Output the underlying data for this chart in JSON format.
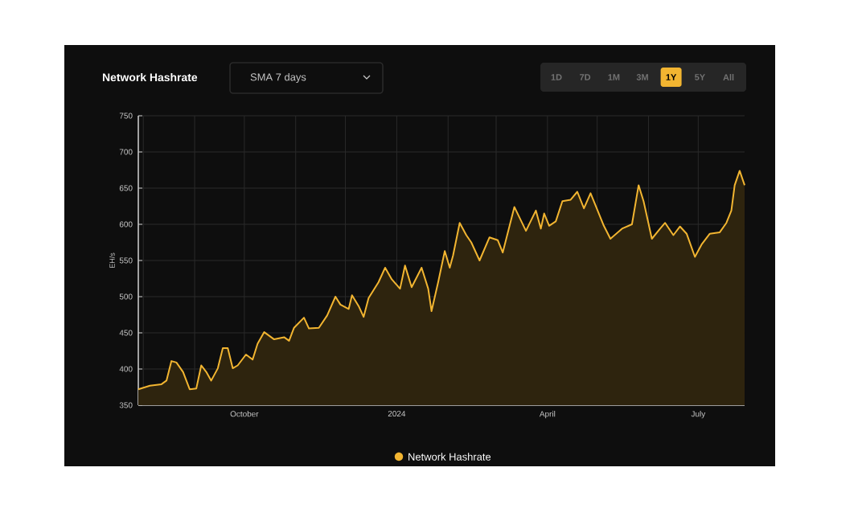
{
  "chart_data": {
    "type": "area",
    "title": "Network Hashrate",
    "subtitle": "SMA 7 days",
    "annotations": [
      "1D",
      "7D",
      "1M",
      "3M",
      "1Y",
      "5Y",
      "All"
    ],
    "ylabel": "EH/s",
    "x": [
      "2023-07-29",
      "2023-08-05",
      "2023-08-12",
      "2023-08-15",
      "2023-08-18",
      "2023-08-21",
      "2023-08-25",
      "2023-08-29",
      "2023-09-02",
      "2023-09-05",
      "2023-09-08",
      "2023-09-11",
      "2023-09-15",
      "2023-09-18",
      "2023-09-21",
      "2023-09-24",
      "2023-09-27",
      "2023-10-02",
      "2023-10-06",
      "2023-10-09",
      "2023-10-13",
      "2023-10-19",
      "2023-10-25",
      "2023-10-28",
      "2023-10-31",
      "2023-11-06",
      "2023-11-09",
      "2023-11-15",
      "2023-11-20",
      "2023-11-25",
      "2023-11-28",
      "2023-12-03",
      "2023-12-05",
      "2023-12-09",
      "2023-12-12",
      "2023-12-15",
      "2023-12-21",
      "2023-12-25",
      "2023-12-29",
      "2024-01-03",
      "2024-01-06",
      "2024-01-10",
      "2024-01-16",
      "2024-01-20",
      "2024-01-22",
      "2024-01-26",
      "2024-01-30",
      "2024-02-02",
      "2024-02-04",
      "2024-02-08",
      "2024-02-12",
      "2024-02-15",
      "2024-02-20",
      "2024-02-26",
      "2024-03-02",
      "2024-03-05",
      "2024-03-12",
      "2024-03-19",
      "2024-03-25",
      "2024-03-28",
      "2024-03-30",
      "2024-04-02",
      "2024-04-06",
      "2024-04-10",
      "2024-04-15",
      "2024-04-19",
      "2024-04-23",
      "2024-04-27",
      "2024-05-05",
      "2024-05-09",
      "2024-05-16",
      "2024-05-22",
      "2024-05-26",
      "2024-05-29",
      "2024-06-03",
      "2024-06-08",
      "2024-06-11",
      "2024-06-16",
      "2024-06-20",
      "2024-06-24",
      "2024-06-29",
      "2024-07-03",
      "2024-07-08",
      "2024-07-14",
      "2024-07-18",
      "2024-07-21",
      "2024-07-23",
      "2024-07-26",
      "2024-07-29"
    ],
    "series": [
      {
        "name": "Network Hashrate",
        "color": "#f2b531",
        "values": [
          372,
          377,
          379,
          384,
          411,
          409,
          396,
          372,
          373,
          405,
          396,
          384,
          401,
          429,
          429,
          401,
          405,
          420,
          413,
          435,
          451,
          441,
          444,
          439,
          457,
          471,
          456,
          457,
          474,
          500,
          489,
          483,
          502,
          487,
          472,
          498,
          520,
          540,
          524,
          511,
          543,
          513,
          540,
          511,
          480,
          520,
          563,
          540,
          557,
          602,
          585,
          575,
          550,
          582,
          578,
          561,
          624,
          591,
          619,
          594,
          615,
          598,
          604,
          632,
          634,
          645,
          622,
          643,
          598,
          580,
          594,
          600,
          654,
          632,
          580,
          594,
          602,
          585,
          597,
          587,
          555,
          572,
          587,
          589,
          602,
          619,
          654,
          674,
          654
        ]
      }
    ],
    "xlim": [
      "2023-07-29",
      "2024-07-29"
    ],
    "xticks": [
      {
        "value": "2023-08-01",
        "label": null
      },
      {
        "value": "2023-09-01",
        "label": null
      },
      {
        "value": "2023-10-01",
        "label": "October"
      },
      {
        "value": "2023-11-01",
        "label": null
      },
      {
        "value": "2023-12-01",
        "label": null
      },
      {
        "value": "2024-01-01",
        "label": "2024"
      },
      {
        "value": "2024-02-01",
        "label": null
      },
      {
        "value": "2024-03-01",
        "label": null
      },
      {
        "value": "2024-04-01",
        "label": "April"
      },
      {
        "value": "2024-05-01",
        "label": null
      },
      {
        "value": "2024-06-01",
        "label": null
      },
      {
        "value": "2024-07-01",
        "label": "July"
      }
    ],
    "ylim": [
      350,
      750
    ],
    "yticks": [
      350,
      400,
      450,
      500,
      550,
      600,
      650,
      700,
      750
    ],
    "grid": true,
    "legend": "bottom"
  }
}
